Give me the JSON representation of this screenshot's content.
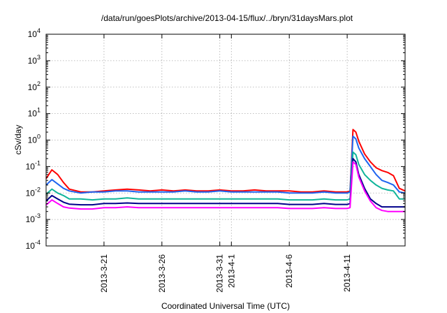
{
  "chart_data": {
    "type": "line",
    "title": "/data/run/goesPlots/archive/2013-04-15/flux/../bryn/31daysMars.plot",
    "xlabel": "Coordinated Universal Time (UTC)",
    "ylabel": "cSv/day",
    "yscale": "log",
    "ylim": [
      0.0001,
      10000
    ],
    "xlim": [
      "2013-03-16",
      "2013-04-16"
    ],
    "grid": true,
    "y_ticks": [
      {
        "base": "10",
        "exp": "-4",
        "value": 0.0001
      },
      {
        "base": "10",
        "exp": "-3",
        "value": 0.001
      },
      {
        "base": "10",
        "exp": "-2",
        "value": 0.01
      },
      {
        "base": "10",
        "exp": "-1",
        "value": 0.1
      },
      {
        "base": "10",
        "exp": "0",
        "value": 1
      },
      {
        "base": "10",
        "exp": "1",
        "value": 10
      },
      {
        "base": "10",
        "exp": "2",
        "value": 100
      },
      {
        "base": "10",
        "exp": "3",
        "value": 1000
      },
      {
        "base": "10",
        "exp": "4",
        "value": 10000
      }
    ],
    "x_ticks": [
      {
        "label": "2013-3-21",
        "date": "2013-03-21"
      },
      {
        "label": "2013-3-26",
        "date": "2013-03-26"
      },
      {
        "label": "2013-3-31",
        "date": "2013-03-31"
      },
      {
        "label": "2013-4-1",
        "date": "2013-04-01"
      },
      {
        "label": "2013-4-6",
        "date": "2013-04-06"
      },
      {
        "label": "2013-4-11",
        "date": "2013-04-11"
      }
    ],
    "x": [
      "2013-03-16",
      "2013-03-16T12:00",
      "2013-03-17",
      "2013-03-17T12:00",
      "2013-03-18",
      "2013-03-19",
      "2013-03-20",
      "2013-03-21",
      "2013-03-22",
      "2013-03-23",
      "2013-03-24",
      "2013-03-25",
      "2013-03-26",
      "2013-03-27",
      "2013-03-28",
      "2013-03-29",
      "2013-03-30",
      "2013-03-31",
      "2013-04-01",
      "2013-04-02",
      "2013-04-03",
      "2013-04-04",
      "2013-04-05",
      "2013-04-06",
      "2013-04-07",
      "2013-04-08",
      "2013-04-09",
      "2013-04-10",
      "2013-04-11",
      "2013-04-11T06:00",
      "2013-04-11T12:00",
      "2013-04-11T18:00",
      "2013-04-12",
      "2013-04-12T12:00",
      "2013-04-13",
      "2013-04-13T12:00",
      "2013-04-14",
      "2013-04-14T12:00",
      "2013-04-15",
      "2013-04-15T12:00",
      "2013-04-16"
    ],
    "series": [
      {
        "color": "#ff0000",
        "values": [
          0.035,
          0.075,
          0.05,
          0.025,
          0.014,
          0.011,
          0.011,
          0.012,
          0.013,
          0.014,
          0.013,
          0.012,
          0.013,
          0.012,
          0.013,
          0.012,
          0.012,
          0.013,
          0.012,
          0.012,
          0.013,
          0.012,
          0.012,
          0.012,
          0.011,
          0.011,
          0.012,
          0.011,
          0.011,
          0.012,
          2.5,
          2.0,
          0.9,
          0.3,
          0.15,
          0.09,
          0.07,
          0.06,
          0.045,
          0.015,
          0.012
        ]
      },
      {
        "color": "#1e64f0",
        "values": [
          0.02,
          0.032,
          0.022,
          0.015,
          0.012,
          0.01,
          0.011,
          0.011,
          0.012,
          0.012,
          0.011,
          0.011,
          0.011,
          0.011,
          0.012,
          0.011,
          0.011,
          0.012,
          0.011,
          0.011,
          0.011,
          0.011,
          0.011,
          0.01,
          0.01,
          0.01,
          0.011,
          0.01,
          0.01,
          0.011,
          1.4,
          1.1,
          0.5,
          0.2,
          0.1,
          0.05,
          0.03,
          0.025,
          0.02,
          0.011,
          0.01
        ]
      },
      {
        "color": "#10b59a",
        "values": [
          0.009,
          0.014,
          0.01,
          0.008,
          0.006,
          0.006,
          0.0055,
          0.006,
          0.006,
          0.0065,
          0.006,
          0.006,
          0.006,
          0.006,
          0.006,
          0.006,
          0.006,
          0.006,
          0.006,
          0.006,
          0.006,
          0.006,
          0.006,
          0.0055,
          0.0055,
          0.0055,
          0.006,
          0.0055,
          0.0055,
          0.006,
          0.35,
          0.28,
          0.12,
          0.05,
          0.03,
          0.02,
          0.015,
          0.013,
          0.012,
          0.006,
          0.006
        ]
      },
      {
        "color": "#00008b",
        "values": [
          0.005,
          0.008,
          0.006,
          0.0045,
          0.0038,
          0.0036,
          0.0036,
          0.004,
          0.004,
          0.0042,
          0.004,
          0.004,
          0.004,
          0.004,
          0.004,
          0.004,
          0.004,
          0.004,
          0.004,
          0.004,
          0.004,
          0.004,
          0.004,
          0.0037,
          0.0037,
          0.0037,
          0.004,
          0.0037,
          0.0037,
          0.004,
          0.2,
          0.15,
          0.05,
          0.015,
          0.006,
          0.004,
          0.003,
          0.003,
          0.003,
          0.003,
          0.003
        ]
      },
      {
        "color": "#ff00ff",
        "values": [
          0.0035,
          0.0055,
          0.004,
          0.003,
          0.0027,
          0.0025,
          0.0025,
          0.0028,
          0.0028,
          0.003,
          0.0028,
          0.0028,
          0.0028,
          0.0028,
          0.0028,
          0.0028,
          0.0028,
          0.0028,
          0.0028,
          0.0028,
          0.0028,
          0.0028,
          0.0028,
          0.0026,
          0.0026,
          0.0026,
          0.0028,
          0.0026,
          0.0026,
          0.0028,
          0.15,
          0.12,
          0.04,
          0.012,
          0.005,
          0.0028,
          0.0022,
          0.002,
          0.002,
          0.002,
          0.002
        ]
      }
    ]
  }
}
